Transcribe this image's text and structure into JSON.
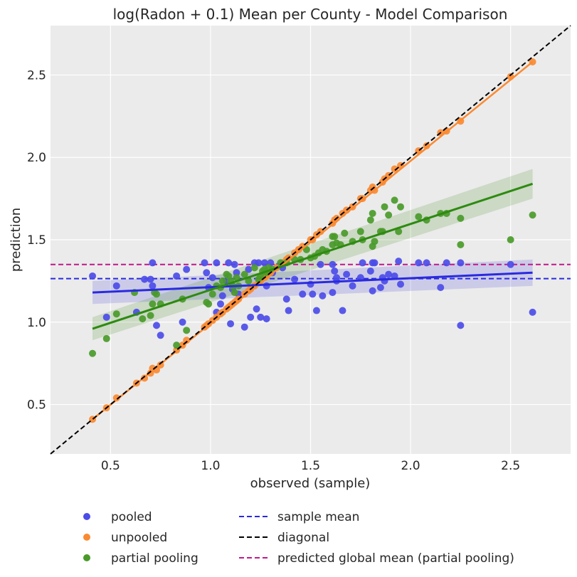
{
  "chart_data": {
    "type": "scatter",
    "title": "log(Radon + 0.1) Mean per County - Model Comparison",
    "xlabel": "observed (sample)",
    "ylabel": "prediction",
    "xlim": [
      0.2,
      2.8
    ],
    "ylim": [
      0.2,
      2.8
    ],
    "grid": true,
    "legend_position": "bottom-center",
    "xticks": [
      0.5,
      1.0,
      1.5,
      2.0,
      2.5
    ],
    "yticks": [
      0.5,
      1.0,
      1.5,
      2.0,
      2.5
    ],
    "xtick_labels": [
      "0.5",
      "1.0",
      "1.5",
      "2.0",
      "2.5"
    ],
    "ytick_labels": [
      "0.5",
      "1.0",
      "1.5",
      "2.0",
      "2.5"
    ],
    "colors": {
      "pooled": "#4c4ce8",
      "unpooled": "#fa8a32",
      "partial_pooling": "#4a9a2a",
      "pooled_line": "#2a2ae0",
      "partial_line": "#2e8a10",
      "sample_mean": "#2a2ae0",
      "diagonal": "#000000",
      "global_mean": "#c0188c",
      "background": "#ebebeb",
      "grid": "#ffffff"
    },
    "series": [
      {
        "name": "pooled",
        "points": [
          [
            0.41,
            1.28
          ],
          [
            0.48,
            1.03
          ],
          [
            0.53,
            1.22
          ],
          [
            0.63,
            1.06
          ],
          [
            0.67,
            1.26
          ],
          [
            0.7,
            1.26
          ],
          [
            0.71,
            1.36
          ],
          [
            0.71,
            1.22
          ],
          [
            0.73,
            0.98
          ],
          [
            0.75,
            0.92
          ],
          [
            0.83,
            1.28
          ],
          [
            0.86,
            1.0
          ],
          [
            0.88,
            1.32
          ],
          [
            0.97,
            1.36
          ],
          [
            0.98,
            1.3
          ],
          [
            0.99,
            1.21
          ],
          [
            1.01,
            1.27
          ],
          [
            1.03,
            1.36
          ],
          [
            1.03,
            1.06
          ],
          [
            1.05,
            1.11
          ],
          [
            1.06,
            1.16
          ],
          [
            1.08,
            1.25
          ],
          [
            1.09,
            1.36
          ],
          [
            1.1,
            0.99
          ],
          [
            1.11,
            1.2
          ],
          [
            1.12,
            1.35
          ],
          [
            1.13,
            1.3
          ],
          [
            1.14,
            1.17
          ],
          [
            1.17,
            0.97
          ],
          [
            1.19,
            1.32
          ],
          [
            1.2,
            1.03
          ],
          [
            1.22,
            1.36
          ],
          [
            1.23,
            1.08
          ],
          [
            1.24,
            1.36
          ],
          [
            1.25,
            1.03
          ],
          [
            1.27,
            1.36
          ],
          [
            1.28,
            1.22
          ],
          [
            1.28,
            1.02
          ],
          [
            1.3,
            1.36
          ],
          [
            1.31,
            1.3
          ],
          [
            1.34,
            1.34
          ],
          [
            1.36,
            1.33
          ],
          [
            1.38,
            1.14
          ],
          [
            1.39,
            1.07
          ],
          [
            1.42,
            1.26
          ],
          [
            1.46,
            1.17
          ],
          [
            1.5,
            1.23
          ],
          [
            1.51,
            1.17
          ],
          [
            1.53,
            1.07
          ],
          [
            1.55,
            1.35
          ],
          [
            1.56,
            1.16
          ],
          [
            1.61,
            1.35
          ],
          [
            1.61,
            1.18
          ],
          [
            1.62,
            1.31
          ],
          [
            1.63,
            1.27
          ],
          [
            1.63,
            1.25
          ],
          [
            1.66,
            1.07
          ],
          [
            1.68,
            1.29
          ],
          [
            1.71,
            1.22
          ],
          [
            1.75,
            1.27
          ],
          [
            1.76,
            1.36
          ],
          [
            1.8,
            1.31
          ],
          [
            1.81,
            1.19
          ],
          [
            1.81,
            1.36
          ],
          [
            1.82,
            1.36
          ],
          [
            1.85,
            1.21
          ],
          [
            1.86,
            1.27
          ],
          [
            1.87,
            1.25
          ],
          [
            1.89,
            1.29
          ],
          [
            1.92,
            1.28
          ],
          [
            1.94,
            1.37
          ],
          [
            1.95,
            1.23
          ],
          [
            2.04,
            1.36
          ],
          [
            2.08,
            1.36
          ],
          [
            2.15,
            1.21
          ],
          [
            2.18,
            1.36
          ],
          [
            2.25,
            1.36
          ],
          [
            2.25,
            0.98
          ],
          [
            2.5,
            1.35
          ],
          [
            2.61,
            1.06
          ]
        ]
      },
      {
        "name": "unpooled",
        "points": [
          [
            0.41,
            0.41
          ],
          [
            0.48,
            0.48
          ],
          [
            0.53,
            0.54
          ],
          [
            0.63,
            0.63
          ],
          [
            0.67,
            0.66
          ],
          [
            0.7,
            0.69
          ],
          [
            0.71,
            0.72
          ],
          [
            0.73,
            0.71
          ],
          [
            0.75,
            0.74
          ],
          [
            0.83,
            0.83
          ],
          [
            0.86,
            0.86
          ],
          [
            0.88,
            0.89
          ],
          [
            0.97,
            0.97
          ],
          [
            0.98,
            0.98
          ],
          [
            0.99,
            0.99
          ],
          [
            1.01,
            1.01
          ],
          [
            1.03,
            1.03
          ],
          [
            1.05,
            1.05
          ],
          [
            1.06,
            1.06
          ],
          [
            1.08,
            1.08
          ],
          [
            1.09,
            1.09
          ],
          [
            1.1,
            1.1
          ],
          [
            1.11,
            1.11
          ],
          [
            1.12,
            1.12
          ],
          [
            1.13,
            1.13
          ],
          [
            1.14,
            1.14
          ],
          [
            1.17,
            1.17
          ],
          [
            1.19,
            1.19
          ],
          [
            1.2,
            1.2
          ],
          [
            1.22,
            1.22
          ],
          [
            1.24,
            1.24
          ],
          [
            1.25,
            1.25
          ],
          [
            1.27,
            1.27
          ],
          [
            1.28,
            1.28
          ],
          [
            1.3,
            1.3
          ],
          [
            1.33,
            1.33
          ],
          [
            1.36,
            1.36
          ],
          [
            1.38,
            1.38
          ],
          [
            1.39,
            1.39
          ],
          [
            1.42,
            1.42
          ],
          [
            1.44,
            1.44
          ],
          [
            1.46,
            1.46
          ],
          [
            1.5,
            1.5
          ],
          [
            1.51,
            1.5
          ],
          [
            1.53,
            1.53
          ],
          [
            1.55,
            1.55
          ],
          [
            1.61,
            1.6
          ],
          [
            1.62,
            1.62
          ],
          [
            1.63,
            1.63
          ],
          [
            1.66,
            1.66
          ],
          [
            1.68,
            1.68
          ],
          [
            1.71,
            1.7
          ],
          [
            1.75,
            1.75
          ],
          [
            1.76,
            1.75
          ],
          [
            1.8,
            1.8
          ],
          [
            1.81,
            1.82
          ],
          [
            1.82,
            1.8
          ],
          [
            1.86,
            1.85
          ],
          [
            1.87,
            1.87
          ],
          [
            1.89,
            1.89
          ],
          [
            1.92,
            1.93
          ],
          [
            1.95,
            1.95
          ],
          [
            2.04,
            2.04
          ],
          [
            2.08,
            2.07
          ],
          [
            2.15,
            2.15
          ],
          [
            2.18,
            2.16
          ],
          [
            2.25,
            2.22
          ],
          [
            2.5,
            2.49
          ],
          [
            2.61,
            2.58
          ]
        ]
      },
      {
        "name": "partial pooling",
        "points": [
          [
            0.41,
            0.81
          ],
          [
            0.48,
            0.9
          ],
          [
            0.53,
            1.05
          ],
          [
            0.62,
            1.18
          ],
          [
            0.66,
            1.02
          ],
          [
            0.7,
            1.04
          ],
          [
            0.71,
            1.11
          ],
          [
            0.72,
            1.18
          ],
          [
            0.73,
            1.17
          ],
          [
            0.75,
            1.11
          ],
          [
            0.83,
            0.86
          ],
          [
            0.86,
            1.14
          ],
          [
            0.88,
            0.95
          ],
          [
            0.98,
            1.12
          ],
          [
            0.99,
            1.11
          ],
          [
            1.01,
            1.17
          ],
          [
            1.03,
            1.22
          ],
          [
            1.05,
            1.21
          ],
          [
            1.06,
            1.25
          ],
          [
            1.08,
            1.29
          ],
          [
            1.09,
            1.28
          ],
          [
            1.1,
            1.25
          ],
          [
            1.11,
            1.22
          ],
          [
            1.12,
            1.18
          ],
          [
            1.13,
            1.27
          ],
          [
            1.14,
            1.22
          ],
          [
            1.17,
            1.29
          ],
          [
            1.19,
            1.25
          ],
          [
            1.22,
            1.33
          ],
          [
            1.24,
            1.26
          ],
          [
            1.25,
            1.28
          ],
          [
            1.26,
            1.31
          ],
          [
            1.27,
            1.32
          ],
          [
            1.28,
            1.3
          ],
          [
            1.29,
            1.33
          ],
          [
            1.31,
            1.32
          ],
          [
            1.35,
            1.36
          ],
          [
            1.38,
            1.36
          ],
          [
            1.42,
            1.38
          ],
          [
            1.45,
            1.38
          ],
          [
            1.48,
            1.44
          ],
          [
            1.5,
            1.39
          ],
          [
            1.52,
            1.4
          ],
          [
            1.54,
            1.42
          ],
          [
            1.56,
            1.44
          ],
          [
            1.58,
            1.43
          ],
          [
            1.61,
            1.47
          ],
          [
            1.61,
            1.52
          ],
          [
            1.62,
            1.52
          ],
          [
            1.63,
            1.48
          ],
          [
            1.65,
            1.47
          ],
          [
            1.67,
            1.54
          ],
          [
            1.71,
            1.49
          ],
          [
            1.75,
            1.55
          ],
          [
            1.76,
            1.5
          ],
          [
            1.8,
            1.62
          ],
          [
            1.81,
            1.66
          ],
          [
            1.81,
            1.46
          ],
          [
            1.82,
            1.49
          ],
          [
            1.85,
            1.55
          ],
          [
            1.86,
            1.55
          ],
          [
            1.87,
            1.7
          ],
          [
            1.89,
            1.65
          ],
          [
            1.92,
            1.74
          ],
          [
            1.94,
            1.55
          ],
          [
            1.95,
            1.7
          ],
          [
            2.04,
            1.64
          ],
          [
            2.08,
            1.62
          ],
          [
            2.15,
            1.66
          ],
          [
            2.18,
            1.66
          ],
          [
            2.25,
            1.47
          ],
          [
            2.25,
            1.63
          ],
          [
            2.5,
            1.5
          ],
          [
            2.61,
            1.65
          ]
        ]
      }
    ],
    "regression_lines": [
      {
        "name": "pooled fit",
        "x": [
          0.41,
          2.61
        ],
        "y": [
          1.18,
          1.3
        ],
        "ci_low": [
          1.11,
          1.22
        ],
        "ci_high": [
          1.25,
          1.38
        ]
      },
      {
        "name": "partial pooling fit",
        "x": [
          0.41,
          2.61
        ],
        "y": [
          0.96,
          1.84
        ],
        "ci_low": [
          0.89,
          1.75
        ],
        "ci_high": [
          1.03,
          1.93
        ]
      }
    ],
    "reference_lines": [
      {
        "name": "sample mean",
        "type": "hline",
        "y": 1.264
      },
      {
        "name": "diagonal",
        "type": "diagonal"
      },
      {
        "name": "predicted global mean (partial pooling)",
        "type": "hline",
        "y": 1.35
      }
    ],
    "legend": [
      {
        "label": "pooled",
        "kind": "marker",
        "color_key": "pooled"
      },
      {
        "label": "unpooled",
        "kind": "marker",
        "color_key": "unpooled"
      },
      {
        "label": "partial pooling",
        "kind": "marker",
        "color_key": "partial_pooling"
      },
      {
        "label": "sample mean",
        "kind": "dashed",
        "color_key": "sample_mean"
      },
      {
        "label": "diagonal",
        "kind": "dashed",
        "color_key": "diagonal"
      },
      {
        "label": "predicted global mean (partial pooling)",
        "kind": "dashed",
        "color_key": "global_mean"
      }
    ]
  }
}
